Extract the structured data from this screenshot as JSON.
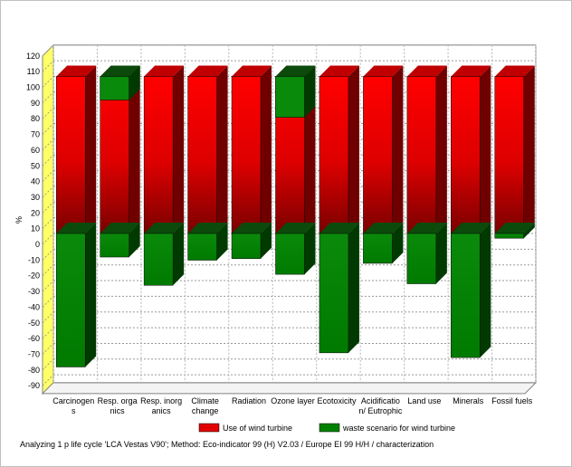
{
  "chart_data": {
    "type": "bar",
    "ylabel": "%",
    "ylim": [
      -95,
      120
    ],
    "yticks": [
      120,
      110,
      100,
      90,
      80,
      70,
      60,
      50,
      40,
      30,
      20,
      10,
      0,
      -10,
      -20,
      -30,
      -40,
      -50,
      -60,
      -70,
      -80,
      -90
    ],
    "grid": true,
    "legend_placement": "bottom",
    "categories": [
      [
        "Carcinogen",
        "s"
      ],
      [
        "Resp. orga",
        "nics"
      ],
      [
        "Resp. inorg",
        "anics"
      ],
      [
        "Climate",
        "change"
      ],
      [
        "Radiation"
      ],
      [
        "Ozone layer"
      ],
      [
        "Ecotoxicity"
      ],
      [
        "Acidificatio",
        "n/ Eutrophic"
      ],
      [
        "Land use"
      ],
      [
        "Minerals"
      ],
      [
        "Fossil fuels"
      ]
    ],
    "series": [
      {
        "name": "Use of wind turbine",
        "color": "#e00000",
        "values": [
          100,
          100,
          100,
          100,
          100,
          100,
          100,
          100,
          100,
          100,
          100
        ]
      },
      {
        "name": "waste scenario for wind turbine",
        "color": "#008000",
        "values": [
          -85,
          -15,
          -33,
          -17,
          -16,
          -26,
          -76,
          -19,
          -32,
          -79,
          -3
        ]
      }
    ]
  },
  "footer": {
    "caption": "Analyzing 1 p life cycle 'LCA Vestas V90';  Method: Eco-indicator 99 (H) V2.03 /  Europe EI 99 H/H / characterization"
  }
}
